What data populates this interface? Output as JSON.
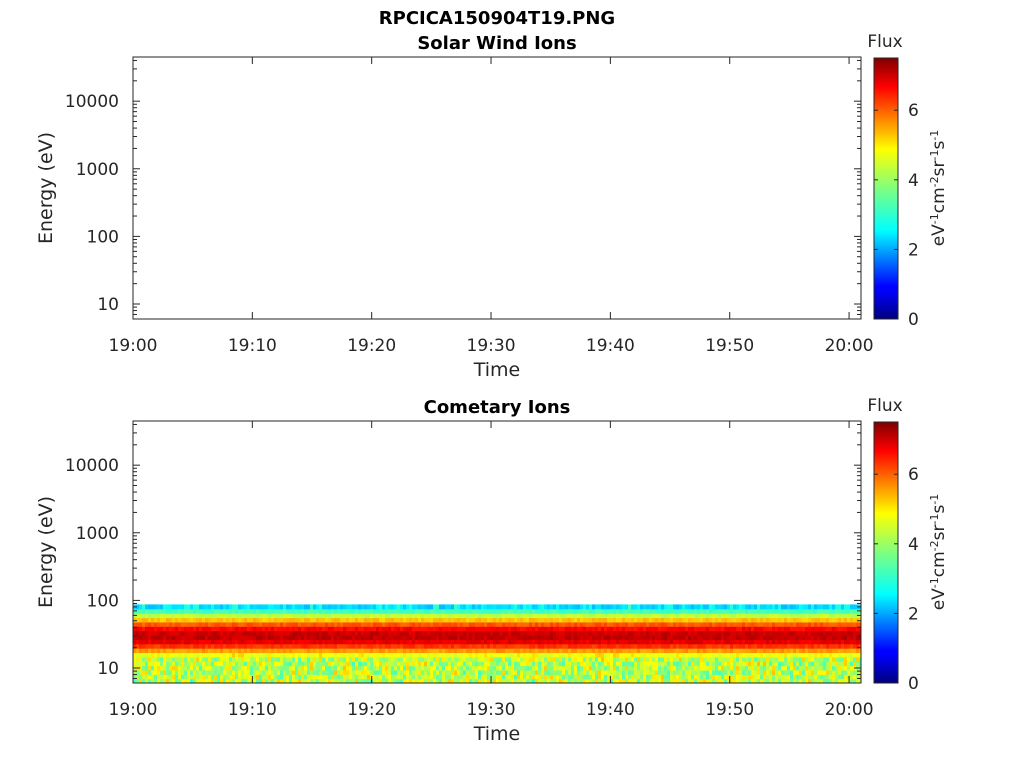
{
  "figure_title": "RPCICA150904T19.PNG",
  "chart_data": [
    {
      "type": "heatmap",
      "title": "Solar Wind Ions",
      "xlabel": "Time",
      "ylabel": "Energy (eV)",
      "yscale": "log",
      "ylim": [
        6,
        45000
      ],
      "xlim": [
        "19:00",
        "20:01"
      ],
      "x_ticks": [
        "19:00",
        "19:10",
        "19:20",
        "19:30",
        "19:40",
        "19:50",
        "20:00"
      ],
      "y_ticks": [
        {
          "value": 10,
          "label": "10"
        },
        {
          "value": 100,
          "label": "100"
        },
        {
          "value": 1000,
          "label": "1000"
        },
        {
          "value": 10000,
          "label": "10000"
        }
      ],
      "colorbar": {
        "label": "Flux",
        "unit": "eV-1cm-2sr-1s-1",
        "range": [
          0,
          7.5
        ],
        "ticks": [
          0,
          2,
          4,
          6
        ]
      },
      "data_present": false,
      "band": []
    },
    {
      "type": "heatmap",
      "title": "Cometary Ions",
      "xlabel": "Time",
      "ylabel": "Energy (eV)",
      "yscale": "log",
      "ylim": [
        6,
        45000
      ],
      "xlim": [
        "19:00",
        "20:01"
      ],
      "x_ticks": [
        "19:00",
        "19:10",
        "19:20",
        "19:30",
        "19:40",
        "19:50",
        "20:00"
      ],
      "y_ticks": [
        {
          "value": 10,
          "label": "10"
        },
        {
          "value": 100,
          "label": "100"
        },
        {
          "value": 1000,
          "label": "1000"
        },
        {
          "value": 10000,
          "label": "10000"
        }
      ],
      "colorbar": {
        "label": "Flux",
        "unit": "eV-1cm-2sr-1s-1",
        "range": [
          0,
          7.5
        ],
        "ticks": [
          0,
          2,
          4,
          6
        ]
      },
      "data_present": true,
      "band": [
        {
          "t": 0,
          "e": 15,
          "w": 0.26,
          "i": 5.4
        },
        {
          "t": 4,
          "e": 15,
          "w": 0.26,
          "i": 5.4
        },
        {
          "t": 6,
          "e": 20,
          "w": 0.34,
          "i": 6.8
        },
        {
          "t": 8,
          "e": 32,
          "w": 0.22,
          "i": 6.6
        },
        {
          "t": 10,
          "e": 28,
          "w": 0.22,
          "i": 6.0
        },
        {
          "t": 12,
          "e": 24,
          "w": 0.22,
          "i": 5.8
        },
        {
          "t": 14,
          "e": 22,
          "w": 0.22,
          "i": 6.0
        },
        {
          "t": 16,
          "e": 35,
          "w": 0.32,
          "i": 6.7
        },
        {
          "t": 17,
          "e": 11,
          "w": 0.3,
          "i": 6.8
        },
        {
          "t": 19,
          "e": 9,
          "w": 0.28,
          "i": 6.6
        },
        {
          "t": 20,
          "e": 22,
          "w": 0.3,
          "i": 6.2
        },
        {
          "t": 22,
          "e": 24,
          "w": 0.32,
          "i": 6.6
        },
        {
          "t": 24,
          "e": 26,
          "w": 0.32,
          "i": 6.6
        },
        {
          "t": 25,
          "e": 35,
          "w": 0.32,
          "i": 6.8
        },
        {
          "t": 27,
          "e": 12,
          "w": 0.32,
          "i": 6.6
        },
        {
          "t": 30,
          "e": 9,
          "w": 0.3,
          "i": 6.2
        },
        {
          "t": 33,
          "e": 10,
          "w": 0.3,
          "i": 5.8
        },
        {
          "t": 34,
          "e": 24,
          "w": 0.26,
          "i": 6.2
        },
        {
          "t": 36,
          "e": 18,
          "w": 0.26,
          "i": 6.0
        },
        {
          "t": 38,
          "e": 20,
          "w": 0.28,
          "i": 6.0
        },
        {
          "t": 40,
          "e": 14,
          "w": 0.28,
          "i": 6.4
        },
        {
          "t": 42,
          "e": 16,
          "w": 0.26,
          "i": 6.0
        },
        {
          "t": 44,
          "e": 26,
          "w": 0.3,
          "i": 6.6
        },
        {
          "t": 46,
          "e": 18,
          "w": 0.3,
          "i": 6.4
        },
        {
          "t": 48,
          "e": 12,
          "w": 0.3,
          "i": 6.4
        },
        {
          "t": 50,
          "e": 10,
          "w": 0.28,
          "i": 6.2
        },
        {
          "t": 52,
          "e": 38,
          "w": 0.32,
          "i": 6.8
        },
        {
          "t": 53,
          "e": 22,
          "w": 0.3,
          "i": 6.6
        },
        {
          "t": 56,
          "e": 24,
          "w": 0.3,
          "i": 6.6
        },
        {
          "t": 57.5,
          "e": 8,
          "w": 0.25,
          "i": 6.4
        },
        {
          "t": 59,
          "e": 22,
          "w": 0.3,
          "i": 6.6
        },
        {
          "t": 61,
          "e": 30,
          "w": 0.3,
          "i": 7.0
        }
      ]
    }
  ]
}
